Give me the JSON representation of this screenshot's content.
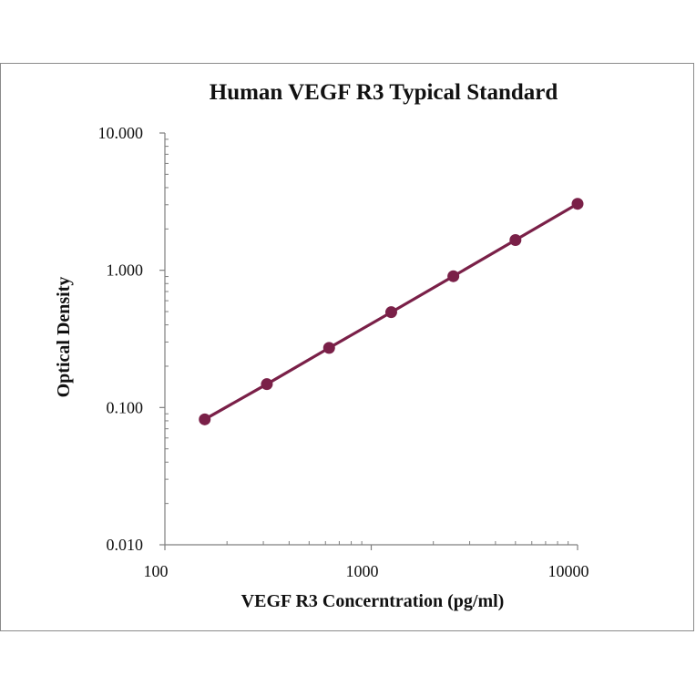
{
  "chart_data": {
    "type": "line",
    "title": "Human VEGF R3 Typical Standard",
    "xlabel": "VEGF R3 Concerntration (pg/ml)",
    "ylabel": "Optical Density",
    "x_scale": "log",
    "y_scale": "log",
    "xlim": [
      100,
      10000
    ],
    "ylim": [
      0.01,
      10
    ],
    "x_ticks": [
      "100",
      "1000",
      "10000"
    ],
    "y_ticks": [
      "10.000",
      "1.000",
      "0.100",
      "0.010"
    ],
    "grid": false,
    "legend": "none",
    "series": [
      {
        "color": "#7a2048",
        "x": [
          156,
          312,
          625,
          1250,
          2500,
          5000,
          10000
        ],
        "y": [
          0.082,
          0.148,
          0.272,
          0.495,
          0.905,
          1.66,
          3.05
        ]
      }
    ]
  }
}
